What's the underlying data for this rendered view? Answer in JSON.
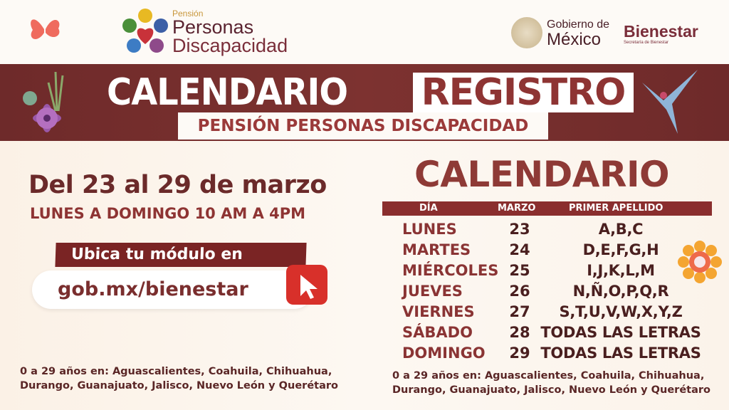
{
  "header": {
    "logo_small": "Pensión",
    "logo_line1": "Personas",
    "logo_line2": "Discapacidad",
    "gov_line1": "Gobierno de",
    "gov_line2": "México",
    "bienestar": "Bienestar",
    "bienestar_sub": "Secretaría de Bienestar"
  },
  "banner": {
    "title_a": "CALENDARIO",
    "title_b": "REGISTRO",
    "subtitle": "PENSIÓN PERSONAS DISCAPACIDAD"
  },
  "left": {
    "date_range": "Del 23 al 29 de marzo",
    "hours": "LUNES A DOMINGO 10 AM A 4PM",
    "locate_label": "Ubica tu módulo en",
    "url": "gob.mx/bienestar",
    "footnote_1": "0 a 29 años en: Aguascalientes, Coahuila, Chihuahua,",
    "footnote_2": "Durango, Guanajuato, Jalisco, Nuevo León y Querétaro"
  },
  "calendar": {
    "title": "CALENDARIO",
    "headers": [
      "DÍA",
      "MARZO",
      "PRIMER APELLIDO"
    ],
    "rows": [
      {
        "day": "LUNES",
        "date": "23",
        "letters": "A,B,C"
      },
      {
        "day": "MARTES",
        "date": "24",
        "letters": "D,E,F,G,H"
      },
      {
        "day": "MIÉRCOLES",
        "date": "25",
        "letters": "I,J,K,L,M"
      },
      {
        "day": "JUEVES",
        "date": "26",
        "letters": "N,Ñ,O,P,Q,R"
      },
      {
        "day": "VIERNES",
        "date": "27",
        "letters": "S,T,U,V,W,X,Y,Z"
      },
      {
        "day": "SÁBADO",
        "date": "28",
        "letters": "TODAS LAS LETRAS"
      },
      {
        "day": "DOMINGO",
        "date": "29",
        "letters": "TODAS LAS LETRAS"
      }
    ],
    "footnote_1": "0 a 29 años en: Aguascalientes, Coahuila, Chihuahua,",
    "footnote_2": "Durango, Guanajuato, Jalisco, Nuevo León y Querétaro"
  },
  "colors": {
    "maroon": "#7a2e2e",
    "accent_red": "#d8302a",
    "cream": "#fbf1e6"
  }
}
